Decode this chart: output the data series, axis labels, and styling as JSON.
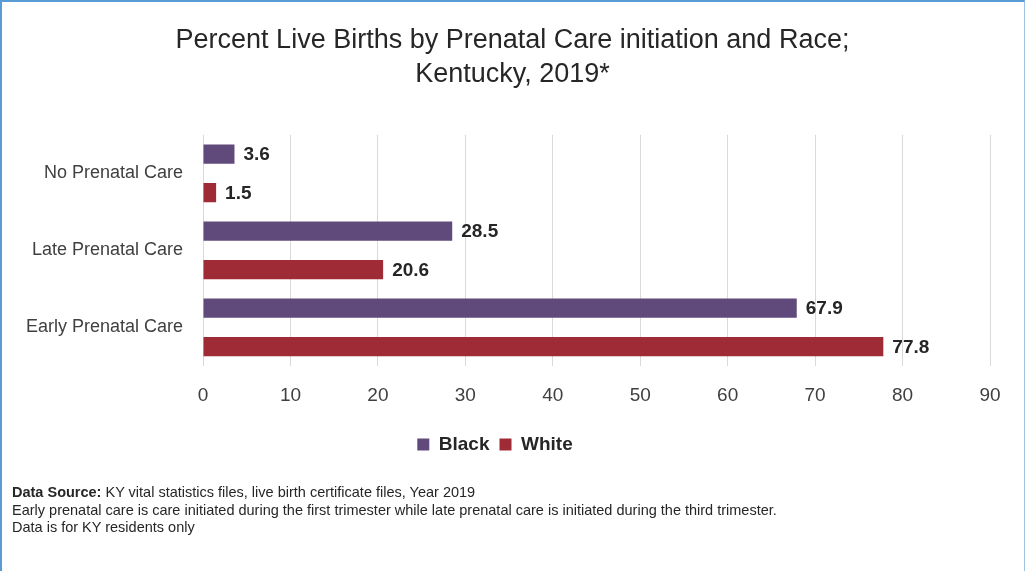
{
  "chart_data": {
    "type": "bar",
    "orientation": "horizontal",
    "title": "Percent Live Births by Prenatal Care initiation and Race;\nKentucky, 2019*",
    "categories": [
      "No Prenatal Care",
      "Late Prenatal Care",
      "Early Prenatal Care"
    ],
    "series": [
      {
        "name": "Black",
        "color": "#604a7b",
        "values": [
          3.6,
          28.5,
          67.9
        ]
      },
      {
        "name": "White",
        "color": "#9e2b36",
        "values": [
          1.5,
          20.6,
          77.8
        ]
      }
    ],
    "xlim": [
      0,
      90
    ],
    "xticks": [
      0,
      10,
      20,
      30,
      40,
      50,
      60,
      70,
      80,
      90
    ],
    "grid": "x",
    "legend": "bottom",
    "data_labels": true,
    "annotations": [
      "Data Source: KY vital statistics files, live birth certificate files, Year 2019",
      "Early prenatal care is care initiated during the first trimester while late prenatal care is initiated during the third trimester.",
      "Data is for KY residents only"
    ]
  }
}
